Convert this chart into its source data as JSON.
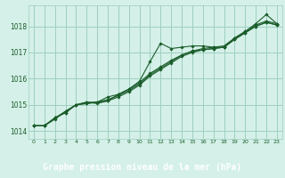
{
  "xlabel": "Graphe pression niveau de la mer (hPa)",
  "xlim": [
    -0.5,
    23.5
  ],
  "ylim": [
    1013.7,
    1018.8
  ],
  "yticks": [
    1014,
    1015,
    1016,
    1017,
    1018
  ],
  "xticks": [
    0,
    1,
    2,
    3,
    4,
    5,
    6,
    7,
    8,
    9,
    10,
    11,
    12,
    13,
    14,
    15,
    16,
    17,
    18,
    19,
    20,
    21,
    22,
    23
  ],
  "background_color": "#d4f0e8",
  "grid_color": "#9ecfbe",
  "line_color": "#1a5c2a",
  "label_bg": "#2a6e3a",
  "series": [
    [
      1014.2,
      1014.2,
      1014.5,
      1014.7,
      1015.0,
      1015.05,
      1015.1,
      1015.15,
      1015.3,
      1015.5,
      1015.75,
      1016.1,
      1016.35,
      1016.6,
      1016.85,
      1017.0,
      1017.1,
      1017.15,
      1017.2,
      1017.5,
      1017.75,
      1018.0,
      1018.15,
      1018.05
    ],
    [
      1014.2,
      1014.2,
      1014.45,
      1014.75,
      1015.0,
      1015.05,
      1015.1,
      1015.2,
      1015.35,
      1015.55,
      1015.8,
      1016.15,
      1016.4,
      1016.65,
      1016.9,
      1017.05,
      1017.15,
      1017.2,
      1017.25,
      1017.55,
      1017.8,
      1018.05,
      1018.2,
      1018.1
    ],
    [
      1014.2,
      1014.2,
      1014.5,
      1014.75,
      1015.0,
      1015.1,
      1015.05,
      1015.15,
      1015.4,
      1015.6,
      1015.85,
      1016.2,
      1016.45,
      1016.7,
      1016.9,
      1017.05,
      1017.1,
      1017.15,
      1017.2,
      1017.5,
      1017.75,
      1018.0,
      1018.15,
      1018.05
    ],
    [
      1014.2,
      1014.2,
      1014.5,
      1014.7,
      1015.0,
      1015.1,
      1015.1,
      1015.3,
      1015.4,
      1015.6,
      1015.9,
      1016.65,
      1017.35,
      1017.15,
      1017.2,
      1017.25,
      1017.25,
      1017.2,
      1017.2,
      1017.55,
      1017.8,
      1018.1,
      1018.45,
      1018.1
    ]
  ]
}
